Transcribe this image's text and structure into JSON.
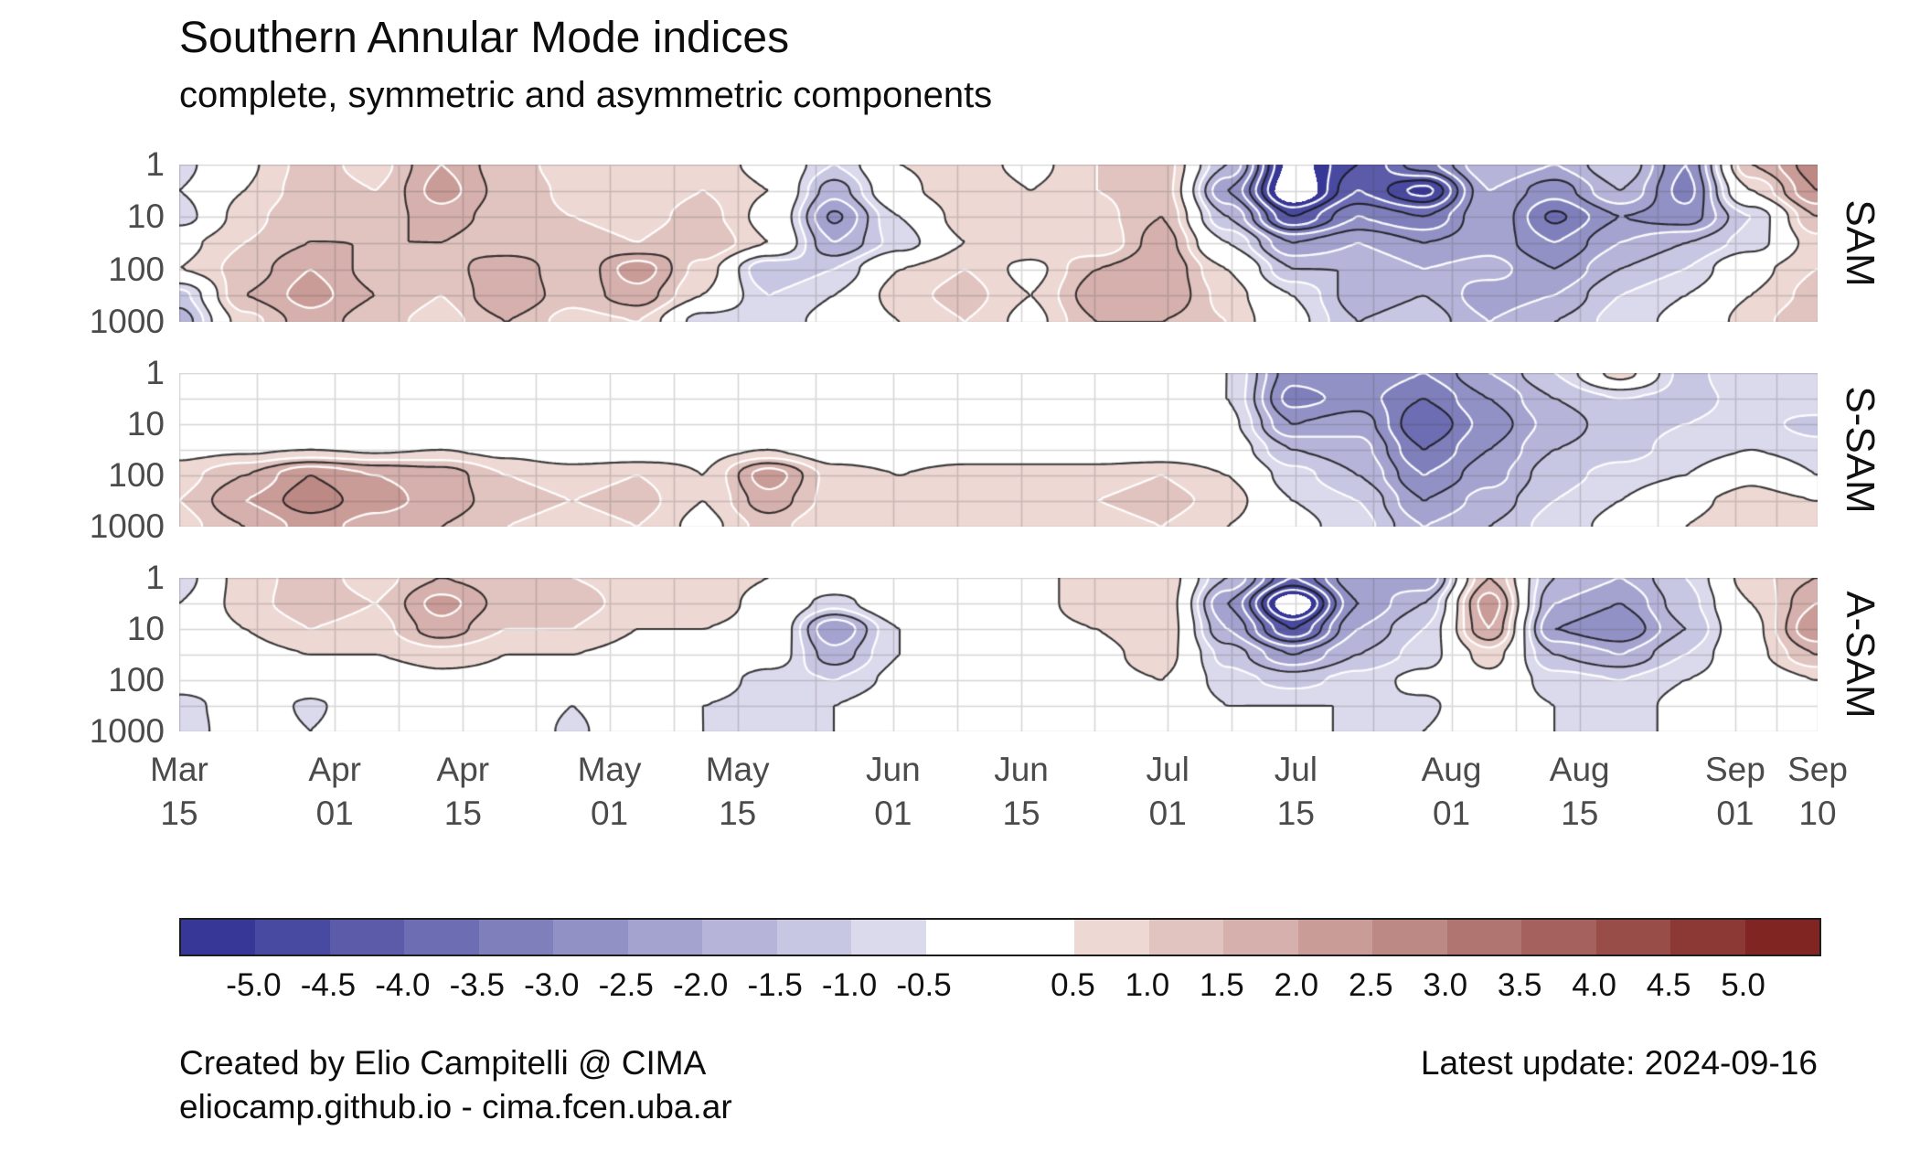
{
  "title": "Southern Annular Mode indices",
  "subtitle": "complete, symmetric and asymmetric components",
  "footer": {
    "created_by": "Created by Elio Campitelli @ CIMA",
    "website": "eliocamp.github.io - cima.fcen.uba.ar",
    "latest_update": "Latest update: 2024-09-16"
  },
  "chart_data": {
    "type": "heatmap",
    "title": "Southern Annular Mode indices",
    "subtitle": "complete, symmetric and asymmetric components",
    "x_axis": "date",
    "x_range_days": 179,
    "x_ticks": [
      {
        "month": "Mar",
        "day": "15",
        "day_offset": 0
      },
      {
        "month": "Apr",
        "day": "01",
        "day_offset": 17
      },
      {
        "month": "Apr",
        "day": "15",
        "day_offset": 31
      },
      {
        "month": "May",
        "day": "01",
        "day_offset": 47
      },
      {
        "month": "May",
        "day": "15",
        "day_offset": 61
      },
      {
        "month": "Jun",
        "day": "01",
        "day_offset": 78
      },
      {
        "month": "Jun",
        "day": "15",
        "day_offset": 92
      },
      {
        "month": "Jul",
        "day": "01",
        "day_offset": 108
      },
      {
        "month": "Jul",
        "day": "15",
        "day_offset": 122
      },
      {
        "month": "Aug",
        "day": "01",
        "day_offset": 139
      },
      {
        "month": "Aug",
        "day": "15",
        "day_offset": 153
      },
      {
        "month": "Sep",
        "day": "01",
        "day_offset": 170
      },
      {
        "month": "Sep",
        "day": "10",
        "day_offset": 179
      }
    ],
    "y_axis": "pressure level (hPa), log scale",
    "y_levels": [
      1,
      3,
      10,
      30,
      100,
      300,
      1000
    ],
    "y_tick_labels": [
      "1",
      "10",
      "100",
      "1000"
    ],
    "fill": {
      "step": 0.5,
      "min": -5.5,
      "max": 5.5,
      "out_of_range": "#ffffff",
      "negative_light": "#edebf6",
      "negative_dark": "#363796",
      "positive_light": "#f9ece8",
      "positive_dark": "#802521",
      "zero_band": "#ffffff"
    },
    "contour_lines": {
      "black_levels": [
        -4.5,
        -3.5,
        -2.5,
        -1.5,
        -0.5,
        0.5,
        1.5,
        2.5,
        3.5,
        4.5
      ],
      "white_levels": [
        -5,
        -4,
        -3,
        -2,
        -1,
        1,
        2,
        3,
        4,
        5
      ],
      "negative_style": "dashed",
      "positive_style": "solid"
    },
    "colorbar_ticks": [
      "-5.0",
      "-4.5",
      "-4.0",
      "-3.5",
      "-3.0",
      "-2.5",
      "-2.0",
      "-1.5",
      "-1.0",
      "-0.5",
      "0.5",
      "1.0",
      "1.5",
      "2.0",
      "2.5",
      "3.0",
      "3.5",
      "4.0",
      "4.5",
      "5.0"
    ],
    "panels": [
      {
        "name": "SAM",
        "values": [
          [
            -0.7,
            0.4,
            1.2,
            0.8,
            2.0,
            1.2,
            0.8,
            0.6,
            0.8,
            0.3,
            -1.0,
            0.5,
            0.8,
            0.3,
            1.0,
            1.3,
            -1.5,
            -5.8,
            -4.5,
            -3.2,
            -1.5,
            -2.0,
            -1.0,
            -3.0,
            1.5,
            2.8
          ],
          [
            -0.5,
            0.5,
            1.3,
            1.0,
            2.2,
            1.3,
            0.9,
            0.7,
            1.0,
            0.5,
            -1.8,
            0.3,
            1.0,
            0.5,
            1.0,
            1.3,
            -2.5,
            -6.2,
            -4.0,
            -5.2,
            -2.0,
            -2.8,
            -1.5,
            -3.2,
            0.5,
            2.5
          ],
          [
            -0.8,
            0.8,
            1.5,
            1.2,
            1.8,
            1.2,
            1.0,
            0.8,
            1.2,
            0.3,
            -2.6,
            -0.5,
            0.8,
            0.8,
            0.8,
            1.5,
            -1.5,
            -4.5,
            -3.0,
            -3.5,
            -2.0,
            -3.6,
            -2.5,
            -2.8,
            -1.0,
            1.5
          ],
          [
            0.3,
            1.0,
            1.5,
            1.5,
            1.5,
            1.0,
            1.2,
            1.0,
            1.5,
            0.5,
            -2.0,
            -0.8,
            0.5,
            1.0,
            0.5,
            1.8,
            -0.5,
            -2.5,
            -2.0,
            -2.5,
            -2.2,
            -3.0,
            -2.0,
            -1.5,
            -0.8,
            0.8
          ],
          [
            0.5,
            1.2,
            2.0,
            1.3,
            1.2,
            2.0,
            1.0,
            2.3,
            0.8,
            -1.5,
            -1.0,
            0.5,
            1.0,
            0.3,
            1.5,
            2.0,
            0.5,
            -1.5,
            -1.5,
            -2.0,
            -1.8,
            -2.5,
            -1.5,
            -1.0,
            0.3,
            1.0
          ],
          [
            -1.2,
            1.5,
            2.2,
            1.5,
            1.0,
            2.0,
            1.2,
            1.8,
            0.5,
            -1.0,
            -0.5,
            0.8,
            1.2,
            0.5,
            1.8,
            2.0,
            0.8,
            -0.5,
            -1.8,
            -1.5,
            -2.3,
            -2.0,
            -1.0,
            -0.5,
            0.5,
            1.2
          ],
          [
            -1.8,
            0.8,
            1.8,
            1.2,
            0.8,
            1.5,
            0.8,
            1.0,
            -0.8,
            -0.8,
            -0.3,
            0.5,
            1.0,
            0.3,
            1.5,
            1.5,
            1.0,
            -0.3,
            -1.5,
            -1.2,
            -2.0,
            -1.5,
            -0.8,
            -0.3,
            0.8,
            1.5
          ]
        ]
      },
      {
        "name": "S-SAM",
        "values": [
          [
            0,
            0.3,
            0,
            0,
            0,
            0.3,
            0,
            0,
            0.4,
            0.3,
            0,
            0,
            0,
            0,
            0.3,
            0.4,
            -0.5,
            -2.8,
            -2.5,
            -3.0,
            -2.0,
            -1.0,
            0.8,
            -1.2,
            -0.5,
            -0.5
          ],
          [
            0,
            0,
            0,
            0,
            0,
            0,
            0,
            0,
            0,
            0,
            0,
            0,
            0,
            0,
            0,
            0.3,
            -0.5,
            -3.2,
            -2.8,
            -3.5,
            -2.5,
            -1.5,
            -1.0,
            -1.2,
            -0.8,
            -0.5
          ],
          [
            0,
            0,
            0,
            0,
            0,
            0,
            0,
            0,
            0,
            0,
            0,
            0,
            0,
            0,
            0,
            0,
            -0.3,
            -2.5,
            -2.2,
            -4.0,
            -2.8,
            -1.8,
            -1.2,
            -1.0,
            -0.8,
            -1.2
          ],
          [
            0.3,
            0.4,
            0.5,
            0.4,
            0.5,
            0.3,
            0,
            0,
            0.3,
            0.5,
            0,
            0,
            0,
            0,
            0,
            0,
            0,
            -1.5,
            -1.8,
            -3.5,
            -2.5,
            -1.5,
            -1.2,
            -0.8,
            -0.5,
            -0.8
          ],
          [
            0.8,
            1.5,
            2.5,
            2.0,
            1.8,
            1.0,
            0.8,
            1.0,
            0.5,
            2.3,
            0.8,
            0.5,
            0.8,
            0.8,
            0.8,
            1.0,
            0.5,
            -0.8,
            -1.5,
            -3.0,
            -2.2,
            -1.2,
            -0.8,
            -0.5,
            0.3,
            -0.5
          ],
          [
            1.0,
            2.0,
            2.8,
            2.2,
            1.8,
            1.2,
            1.0,
            1.2,
            0.5,
            1.8,
            0.8,
            0.8,
            1.0,
            0.8,
            1.0,
            1.2,
            0.8,
            -0.5,
            -1.0,
            -2.5,
            -1.8,
            -1.0,
            -0.5,
            0.3,
            0.8,
            0.5
          ],
          [
            0.8,
            1.5,
            2.2,
            1.8,
            1.5,
            1.0,
            0.8,
            1.0,
            0.3,
            1.2,
            0.5,
            0.8,
            1.0,
            0.5,
            0.8,
            1.0,
            0.5,
            -0.3,
            -0.8,
            -2.0,
            -1.5,
            -0.8,
            -0.3,
            0.5,
            1.0,
            0.8
          ]
        ]
      },
      {
        "name": "A-SAM",
        "values": [
          [
            -0.8,
            0.8,
            1.2,
            0.8,
            1.5,
            1.2,
            1.0,
            0.8,
            0.8,
            0.5,
            0.3,
            0.3,
            0.5,
            0.3,
            0.8,
            1.0,
            -1.5,
            -4.0,
            -2.0,
            -2.5,
            1.5,
            -1.5,
            -2.0,
            -1.0,
            0.8,
            1.5
          ],
          [
            -0.5,
            0.8,
            1.3,
            1.0,
            2.2,
            1.3,
            1.2,
            0.8,
            0.8,
            0.3,
            -0.8,
            0.3,
            0.3,
            0.3,
            0.8,
            1.0,
            -2.5,
            -6.2,
            -2.5,
            -1.5,
            2.3,
            -2.0,
            -2.5,
            -1.2,
            0.5,
            2.0
          ],
          [
            -0.3,
            0.5,
            1.0,
            0.8,
            1.8,
            1.0,
            1.0,
            0.5,
            0.5,
            0.3,
            -2.5,
            -0.5,
            0.3,
            0.3,
            0.5,
            1.0,
            -2.0,
            -4.5,
            -2.0,
            -1.0,
            2.0,
            -2.5,
            -3.0,
            -1.5,
            0.3,
            2.5
          ],
          [
            0,
            0.3,
            0.5,
            0.5,
            0.8,
            0.5,
            0.5,
            0.3,
            0.3,
            0,
            -1.8,
            -0.5,
            0,
            0,
            0.3,
            0.8,
            -1.2,
            -2.5,
            -1.5,
            -0.8,
            0.8,
            -1.5,
            -2.0,
            -1.0,
            0.3,
            1.5
          ],
          [
            0,
            0,
            0,
            0,
            0.3,
            0.3,
            0,
            0,
            0,
            -0.8,
            -1.0,
            -0.3,
            0,
            0,
            0.3,
            0.5,
            -0.8,
            -1.2,
            -0.8,
            -0.3,
            0.3,
            -0.8,
            -1.0,
            -0.5,
            0,
            0.5
          ],
          [
            -0.8,
            0,
            -0.6,
            0,
            0,
            0,
            -0.5,
            0,
            -0.5,
            -0.8,
            -0.5,
            0,
            -0.5,
            0,
            0.3,
            0.3,
            -0.5,
            -0.5,
            -0.5,
            -0.6,
            0,
            -0.5,
            -0.8,
            -0.3,
            0,
            0.3
          ],
          [
            -0.9,
            0,
            -0.5,
            0,
            0,
            0,
            -0.6,
            0,
            -0.5,
            -0.7,
            -0.5,
            0,
            0,
            0,
            0.3,
            0,
            -0.5,
            -0.3,
            -0.6,
            -0.5,
            0,
            -0.5,
            -0.8,
            -0.3,
            0,
            0.3
          ]
        ]
      }
    ]
  }
}
